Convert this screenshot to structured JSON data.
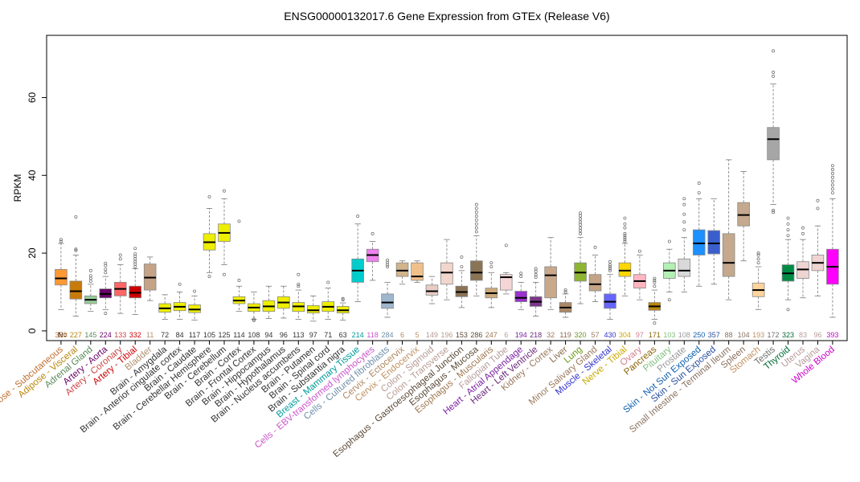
{
  "chart_data": {
    "type": "boxplot",
    "title": "ENSG00000132017.6 Gene Expression from GTEx (Release V6)",
    "ylabel": "RPKM",
    "n_label": "N=",
    "ylim": [
      -2.5,
      76
    ],
    "yticks": [
      0,
      20,
      40,
      60
    ],
    "grid": false,
    "legend": "none",
    "categories": [
      "Adipose - Subcutaneous",
      "Adipose - Visceral",
      "Adrenal Gland",
      "Artery - Aorta",
      "Artery - Coronary",
      "Artery - Tibial",
      "Bladder",
      "Brain - Amygdala",
      "Brain - Anterior cingulate cortex",
      "Brain - Caudate",
      "Brain - Cerebellar Hemisphere",
      "Brain - Cerebellum",
      "Brain - Cortex",
      "Brain - Frontal Cortex",
      "Brain - Hippocampus",
      "Brain - Hypothalamus",
      "Brain - Nucleus accumbens",
      "Brain - Putamen",
      "Brain - Spinal cord",
      "Brain - Substantia nigra",
      "Breast - Mammary Tissue",
      "Cells - EBV-transformed lymphocytes",
      "Cells - Cultured fibroblasts",
      "Cervix - Ectocervix",
      "Cervix - Endocervix",
      "Colon - Sigmoid",
      "Colon - Transverse",
      "Esophagus - Gastroesophageal Junction",
      "Esophagus - Mucosa",
      "Esophagus - Muscularis",
      "Fallopian Tube",
      "Heart - Atrial Appendage",
      "Heart - Left Ventricle",
      "Kidney - Cortex",
      "Liver",
      "Lung",
      "Minor Salivary Gland",
      "Muscle - Skeletal",
      "Nerve - Tibial",
      "Ovary",
      "Pancreas",
      "Pituitary",
      "Prostate",
      "Skin - Not Sun Exposed",
      "Skin - Sun Exposed",
      "Small Intestine - Terminal Ileum",
      "Spleen",
      "Stomach",
      "Testis",
      "Thyroid",
      "Uterus",
      "Vagina",
      "Whole Blood"
    ],
    "n": [
      "350",
      "227",
      "145",
      "224",
      "133",
      "332",
      "11",
      "72",
      "84",
      "117",
      "105",
      "125",
      "114",
      "108",
      "94",
      "96",
      "113",
      "97",
      "71",
      "63",
      "214",
      "118",
      "284",
      "6",
      "5",
      "149",
      "196",
      "153",
      "286",
      "247",
      "6",
      "194",
      "218",
      "32",
      "119",
      "320",
      "57",
      "430",
      "304",
      "97",
      "171",
      "103",
      "108",
      "250",
      "357",
      "88",
      "104",
      "193",
      "172",
      "323",
      "83",
      "96",
      "393"
    ],
    "colors": [
      "#FF9933",
      "#C87A0A",
      "#99CC99",
      "#660066",
      "#FF6666",
      "#CC0000",
      "#C4A386",
      "#EEEE00",
      "#EEEE00",
      "#EEEE00",
      "#EEEE00",
      "#EEEE00",
      "#EEEE00",
      "#EEEE00",
      "#EEEE00",
      "#EEEE00",
      "#EEEE00",
      "#EEEE00",
      "#EEEE00",
      "#EEEE00",
      "#00CCCC",
      "#EE82EE",
      "#9FB6CD",
      "#D2B48C",
      "#F0C08A",
      "#E8CDC5",
      "#F2D6CC",
      "#8B7355",
      "#8B7355",
      "#CDAA7D",
      "#F5D5D5",
      "#9932CC",
      "#7A378B",
      "#C9A88B",
      "#AA8866",
      "#8DB531",
      "#C4A386",
      "#6666FF",
      "#FFD700",
      "#FFB6C1",
      "#B8860B",
      "#B3F0B3",
      "#D9D9D9",
      "#1E90FF",
      "#3A5FCD",
      "#C4A98E",
      "#C4A98E",
      "#FFD39B",
      "#A6A6A6",
      "#008B45",
      "#EED5D2",
      "#EED5D2",
      "#FF00FF"
    ],
    "label_colors": [
      "#C07030",
      "#B8860B",
      "#5A8A5A",
      "#660066",
      "#CC4444",
      "#CC0000",
      "#B09070",
      "#333333",
      "#333333",
      "#333333",
      "#333333",
      "#333333",
      "#333333",
      "#333333",
      "#333333",
      "#333333",
      "#333333",
      "#333333",
      "#333333",
      "#333333",
      "#009999",
      "#CC55CC",
      "#6F8FA8",
      "#B08860",
      "#C09060",
      "#B49A92",
      "#B89C92",
      "#5C4A38",
      "#5C4A38",
      "#A07850",
      "#B89C9C",
      "#7A22A0",
      "#6A2A7A",
      "#9A7A5E",
      "#8A6A4C",
      "#6E9A1A",
      "#9A7A5E",
      "#3333CC",
      "#C9A800",
      "#D08090",
      "#8B6508",
      "#80C080",
      "#999999",
      "#1060B0",
      "#2A4FA0",
      "#8A7260",
      "#8A7260",
      "#C09060",
      "#707070",
      "#006B35",
      "#B89C9C",
      "#B89C9C",
      "#CC00CC"
    ],
    "stats": [
      {
        "whislo": 5.5,
        "q1": 11.8,
        "median": 13.5,
        "q3": 15.8,
        "whishi": 22.5,
        "outliers": [
          23.5,
          23.0
        ]
      },
      {
        "whislo": 3.8,
        "q1": 8.2,
        "median": 10.2,
        "q3": 12.8,
        "whishi": 19.5,
        "outliers": [
          29.3,
          21.0,
          20.7
        ]
      },
      {
        "whislo": 5.0,
        "q1": 7.0,
        "median": 8.0,
        "q3": 9.0,
        "whishi": 12.0,
        "outliers": [
          12.8,
          13.5,
          14.2,
          15.5
        ]
      },
      {
        "whislo": 5.5,
        "q1": 8.5,
        "median": 9.5,
        "q3": 10.8,
        "whishi": 14.0,
        "outliers": [
          4.5,
          15.0,
          15.8,
          16.8,
          17.4
        ]
      },
      {
        "whislo": 4.5,
        "q1": 9.0,
        "median": 10.8,
        "q3": 12.5,
        "whishi": 17.0,
        "outliers": [
          18.5,
          19.5
        ]
      },
      {
        "whislo": 4.2,
        "q1": 8.5,
        "median": 9.8,
        "q3": 11.5,
        "whishi": 16.0,
        "outliers": [
          16.5,
          17.2,
          17.8,
          18.5,
          19.2,
          19.8,
          21.2
        ]
      },
      {
        "whislo": 7.8,
        "q1": 10.5,
        "median": 13.7,
        "q3": 17.2,
        "whishi": 19.0,
        "outliers": []
      },
      {
        "whislo": 3.0,
        "q1": 4.8,
        "median": 5.8,
        "q3": 7.0,
        "whishi": 9.3,
        "outliers": []
      },
      {
        "whislo": 3.0,
        "q1": 5.2,
        "median": 6.2,
        "q3": 7.3,
        "whishi": 10.0,
        "outliers": [
          12.0
        ]
      },
      {
        "whislo": 2.8,
        "q1": 4.7,
        "median": 5.5,
        "q3": 6.7,
        "whishi": 9.0,
        "outliers": [
          10.2
        ]
      },
      {
        "whislo": 15.0,
        "q1": 20.8,
        "median": 22.8,
        "q3": 25.0,
        "whishi": 31.5,
        "outliers": [
          34.5,
          14.0
        ]
      },
      {
        "whislo": 17.0,
        "q1": 23.0,
        "median": 25.2,
        "q3": 27.5,
        "whishi": 34.0,
        "outliers": [
          36.0,
          14.5
        ]
      },
      {
        "whislo": 5.0,
        "q1": 7.0,
        "median": 7.8,
        "q3": 8.8,
        "whishi": 11.5,
        "outliers": [
          13.0,
          28.2
        ]
      },
      {
        "whislo": 3.0,
        "q1": 5.0,
        "median": 6.0,
        "q3": 7.0,
        "whishi": 10.0,
        "outliers": [
          3.0,
          2.7
        ]
      },
      {
        "whislo": 3.2,
        "q1": 5.0,
        "median": 6.3,
        "q3": 7.8,
        "whishi": 11.5,
        "outliers": []
      },
      {
        "whislo": 3.3,
        "q1": 5.8,
        "median": 7.3,
        "q3": 8.8,
        "whishi": 11.5,
        "outliers": []
      },
      {
        "whislo": 3.0,
        "q1": 5.0,
        "median": 6.3,
        "q3": 7.3,
        "whishi": 10.5,
        "outliers": [
          11.5,
          12.0,
          14.5
        ]
      },
      {
        "whislo": 2.5,
        "q1": 4.6,
        "median": 5.3,
        "q3": 6.5,
        "whishi": 9.0,
        "outliers": []
      },
      {
        "whislo": 3.0,
        "q1": 5.0,
        "median": 6.2,
        "q3": 7.5,
        "whishi": 11.0,
        "outliers": [
          12.5
        ]
      },
      {
        "whislo": 2.8,
        "q1": 4.6,
        "median": 5.3,
        "q3": 6.3,
        "whishi": 7.2,
        "outliers": [
          8.0,
          8.3
        ]
      },
      {
        "whislo": 7.5,
        "q1": 12.5,
        "median": 15.5,
        "q3": 18.5,
        "whishi": 27.5,
        "outliers": [
          29.5
        ]
      },
      {
        "whislo": 13.0,
        "q1": 17.8,
        "median": 19.5,
        "q3": 21.0,
        "whishi": 23.0,
        "outliers": [
          25.0
        ]
      },
      {
        "whislo": 3.5,
        "q1": 5.8,
        "median": 7.3,
        "q3": 9.5,
        "whishi": 12.5,
        "outliers": [
          16.5,
          17.0,
          17.6,
          18.2
        ]
      },
      {
        "whislo": 12.0,
        "q1": 14.0,
        "median": 15.5,
        "q3": 17.5,
        "whishi": 18.0,
        "outliers": []
      },
      {
        "whislo": 12.5,
        "q1": 13.0,
        "median": 14.0,
        "q3": 17.5,
        "whishi": 18.0,
        "outliers": []
      },
      {
        "whislo": 7.0,
        "q1": 9.2,
        "median": 10.2,
        "q3": 11.8,
        "whishi": 14.0,
        "outliers": []
      },
      {
        "whislo": 8.0,
        "q1": 12.0,
        "median": 15.0,
        "q3": 17.5,
        "whishi": 23.5,
        "outliers": []
      },
      {
        "whislo": 6.0,
        "q1": 8.8,
        "median": 10.0,
        "q3": 11.5,
        "whishi": 15.5,
        "outliers": [
          16.5,
          19.0
        ]
      },
      {
        "whislo": 9.0,
        "q1": 13.0,
        "median": 15.0,
        "q3": 18.0,
        "whishi": 24.5,
        "outliers": [
          25.5,
          26.5,
          27.5,
          28.5,
          29.5,
          30.5,
          31.5,
          32.5
        ]
      },
      {
        "whislo": 6.0,
        "q1": 8.5,
        "median": 9.7,
        "q3": 11.0,
        "whishi": 15.0,
        "outliers": [
          16.5,
          17.5
        ]
      },
      {
        "whislo": 9.5,
        "q1": 10.5,
        "median": 13.8,
        "q3": 14.5,
        "whishi": 15.0,
        "outliers": [
          22.0
        ]
      },
      {
        "whislo": 5.5,
        "q1": 7.5,
        "median": 8.5,
        "q3": 10.2,
        "whishi": 12.5,
        "outliers": [
          14.0,
          14.8
        ]
      },
      {
        "whislo": 3.8,
        "q1": 6.3,
        "median": 7.5,
        "q3": 8.8,
        "whishi": 12.5,
        "outliers": [
          13.8,
          14.5,
          15.3,
          16.0
        ]
      },
      {
        "whislo": 5.5,
        "q1": 8.5,
        "median": 14.3,
        "q3": 16.5,
        "whishi": 24.0,
        "outliers": []
      },
      {
        "whislo": 3.5,
        "q1": 4.8,
        "median": 6.0,
        "q3": 7.3,
        "whishi": 9.5,
        "outliers": [
          10.0,
          10.5
        ]
      },
      {
        "whislo": 7.0,
        "q1": 12.8,
        "median": 15.0,
        "q3": 17.5,
        "whishi": 24.0,
        "outliers": [
          25.0,
          25.8,
          26.5,
          27.3,
          28.0,
          28.8,
          29.6,
          30.3
        ]
      },
      {
        "whislo": 7.5,
        "q1": 10.3,
        "median": 12.0,
        "q3": 14.5,
        "whishi": 19.5,
        "outliers": [
          21.5
        ]
      },
      {
        "whislo": 3.0,
        "q1": 5.8,
        "median": 7.5,
        "q3": 9.5,
        "whishi": 14.5,
        "outliers": [
          15.5,
          16.0,
          16.5,
          17.0,
          17.8
        ]
      },
      {
        "whislo": 9.0,
        "q1": 14.0,
        "median": 15.5,
        "q3": 17.5,
        "whishi": 22.5,
        "outliers": [
          23.0,
          23.5,
          24.0,
          24.5,
          25.0,
          26.5,
          27.5,
          29.0
        ]
      },
      {
        "whislo": 8.0,
        "q1": 11.0,
        "median": 12.8,
        "q3": 14.5,
        "whishi": 19.5,
        "outliers": [
          20.5
        ]
      },
      {
        "whislo": 3.0,
        "q1": 5.3,
        "median": 6.3,
        "q3": 7.3,
        "whishi": 10.5,
        "outliers": [
          11.5,
          12.5,
          13.0,
          13.5,
          2.0
        ]
      },
      {
        "whislo": 10.0,
        "q1": 13.5,
        "median": 15.5,
        "q3": 17.5,
        "whishi": 21.0,
        "outliers": [
          23.0,
          8.0
        ]
      },
      {
        "whislo": 10.0,
        "q1": 14.0,
        "median": 15.5,
        "q3": 18.5,
        "whishi": 24.0,
        "outliers": [
          26.0,
          28.0,
          30.0,
          32.5,
          34.0
        ]
      },
      {
        "whislo": 11.5,
        "q1": 19.5,
        "median": 22.5,
        "q3": 26.0,
        "whishi": 34.0,
        "outliers": [
          35.5,
          38.0
        ]
      },
      {
        "whislo": 12.0,
        "q1": 19.8,
        "median": 22.5,
        "q3": 25.8,
        "whishi": 34.0,
        "outliers": []
      },
      {
        "whislo": 8.0,
        "q1": 14.0,
        "median": 17.5,
        "q3": 25.0,
        "whishi": 44.0,
        "outliers": []
      },
      {
        "whislo": 18.0,
        "q1": 27.0,
        "median": 29.8,
        "q3": 33.0,
        "whishi": 41.0,
        "outliers": []
      },
      {
        "whislo": 5.5,
        "q1": 8.8,
        "median": 10.5,
        "q3": 12.3,
        "whishi": 16.5,
        "outliers": [
          17.5,
          18.5,
          19.5,
          20.0
        ]
      },
      {
        "whislo": 32.5,
        "q1": 44.0,
        "median": 49.3,
        "q3": 52.3,
        "whishi": 63.5,
        "outliers": [
          65.5,
          66.5,
          72.0,
          31.0,
          30.5
        ]
      },
      {
        "whislo": 8.0,
        "q1": 12.8,
        "median": 14.8,
        "q3": 17.0,
        "whishi": 23.5,
        "outliers": [
          24.5,
          26.0,
          27.5,
          29.0,
          5.5
        ]
      },
      {
        "whislo": 8.5,
        "q1": 13.5,
        "median": 15.8,
        "q3": 17.8,
        "whishi": 23.5,
        "outliers": [
          25.0,
          26.5
        ]
      },
      {
        "whislo": 9.0,
        "q1": 15.5,
        "median": 17.5,
        "q3": 19.5,
        "whishi": 27.0,
        "outliers": [
          31.5,
          33.5
        ]
      },
      {
        "whislo": 3.5,
        "q1": 12.0,
        "median": 16.5,
        "q3": 21.0,
        "whishi": 34.0,
        "outliers": [
          35.5,
          36.5,
          37.5,
          38.5,
          39.5,
          40.5,
          41.5,
          42.5
        ]
      }
    ]
  }
}
